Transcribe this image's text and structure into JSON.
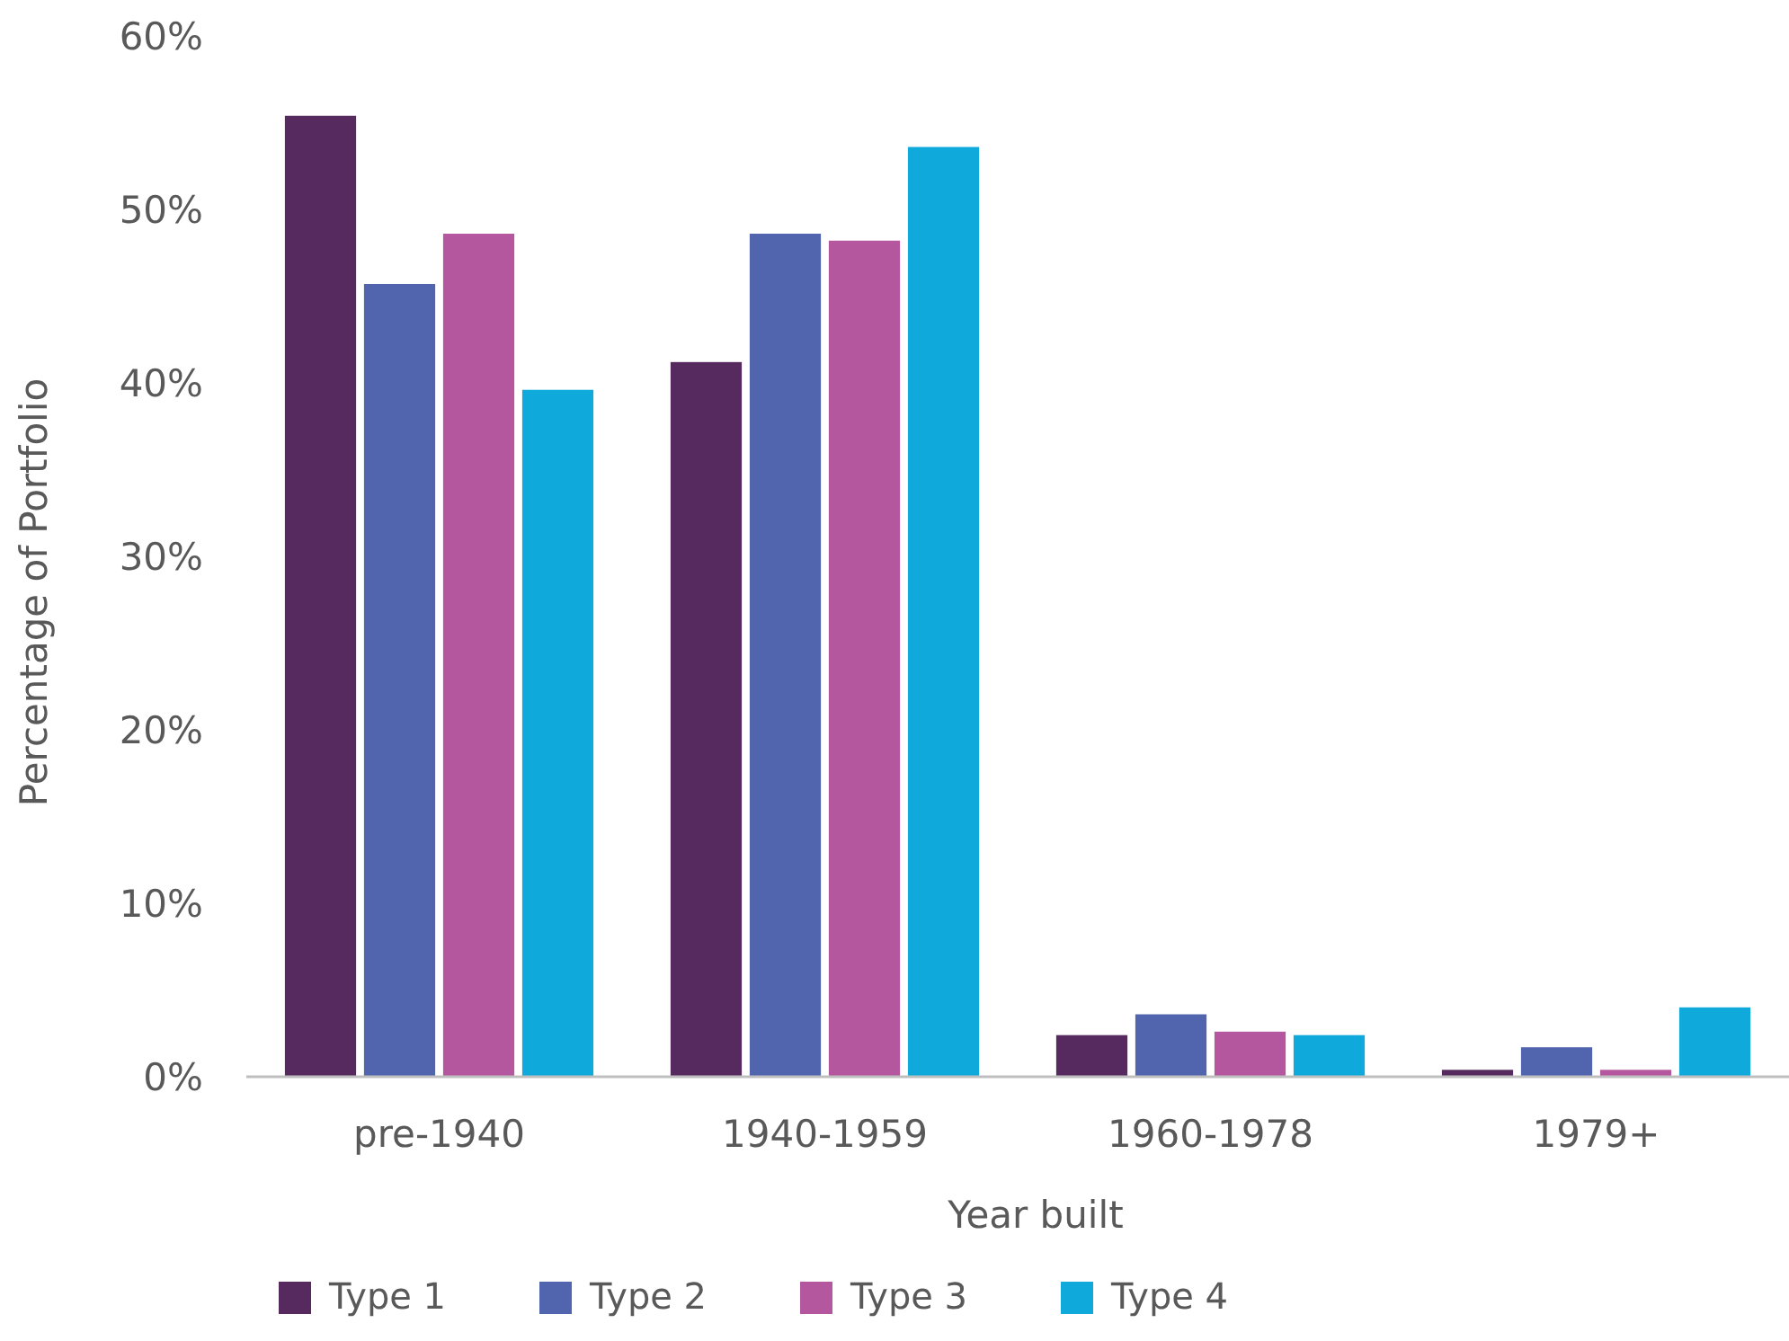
{
  "chart_data": {
    "type": "bar",
    "xlabel": "Year built",
    "ylabel": "Percentage of Portfolio",
    "categories": [
      "pre-1940",
      "1940-1959",
      "1960-1978",
      "1979+"
    ],
    "series": [
      {
        "name": "Type 1",
        "color": "#562a5e",
        "values": [
          55.4,
          41.2,
          2.4,
          0.4
        ]
      },
      {
        "name": "Type 2",
        "color": "#5065ae",
        "values": [
          45.7,
          48.6,
          3.6,
          1.7
        ]
      },
      {
        "name": "Type 3",
        "color": "#b5579f",
        "values": [
          48.6,
          48.2,
          2.6,
          0.4
        ]
      },
      {
        "name": "Type 4",
        "color": "#10a9dc",
        "values": [
          39.6,
          53.6,
          2.4,
          4.0
        ]
      }
    ],
    "ylim": [
      0,
      60
    ],
    "yticks": [
      {
        "value": 0,
        "label": "0%"
      },
      {
        "value": 10,
        "label": "10%"
      },
      {
        "value": 20,
        "label": "20%"
      },
      {
        "value": 30,
        "label": "30%"
      },
      {
        "value": 40,
        "label": "40%"
      },
      {
        "value": 50,
        "label": "50%"
      },
      {
        "value": 60,
        "label": "60%"
      }
    ],
    "grid": false,
    "legend": "bottom left"
  }
}
